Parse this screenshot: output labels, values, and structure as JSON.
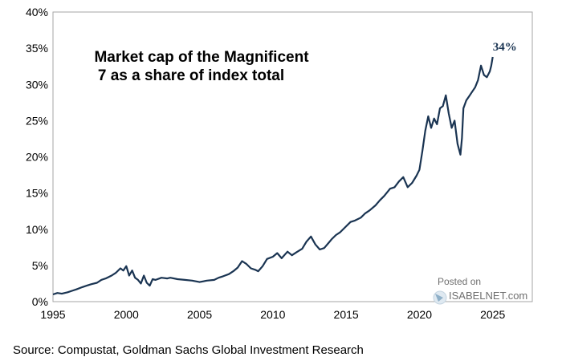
{
  "chart_data": {
    "type": "line",
    "title_lines": [
      "Market cap of the Magnificent",
      "7 as a share of index total"
    ],
    "xlabel": "",
    "ylabel": "",
    "xlim": [
      1995,
      2027.7
    ],
    "ylim": [
      0,
      40
    ],
    "x_ticks": [
      1995,
      2000,
      2005,
      2010,
      2015,
      2020,
      2025
    ],
    "x_tick_labels": [
      "1995",
      "2000",
      "2005",
      "2010",
      "2015",
      "2020",
      "2025"
    ],
    "y_ticks": [
      0,
      5,
      10,
      15,
      20,
      25,
      30,
      35,
      40
    ],
    "y_tick_labels": [
      "0%",
      "5%",
      "10%",
      "15%",
      "20%",
      "25%",
      "30%",
      "35%",
      "40%"
    ],
    "grid": false,
    "line_color": "#1a3452",
    "end_label": "34%",
    "series": [
      {
        "x": [
          1995.0,
          1995.3,
          1995.6,
          1996.0,
          1996.3,
          1996.6,
          1997.0,
          1997.3,
          1997.6,
          1998.0,
          1998.3,
          1998.6,
          1999.0,
          1999.3,
          1999.6,
          1999.8,
          2000.0,
          2000.2,
          2000.4,
          2000.6,
          2000.8,
          2001.0,
          2001.2,
          2001.4,
          2001.6,
          2001.8,
          2002.0,
          2002.4,
          2002.8,
          2003.0,
          2003.5,
          2004.0,
          2004.5,
          2005.0,
          2005.5,
          2006.0,
          2006.3,
          2006.6,
          2007.0,
          2007.3,
          2007.6,
          2007.9,
          2008.2,
          2008.5,
          2008.8,
          2009.0,
          2009.3,
          2009.6,
          2010.0,
          2010.3,
          2010.6,
          2011.0,
          2011.3,
          2011.6,
          2012.0,
          2012.3,
          2012.6,
          2012.9,
          2013.2,
          2013.5,
          2013.8,
          2014.0,
          2014.3,
          2014.6,
          2015.0,
          2015.3,
          2015.6,
          2016.0,
          2016.3,
          2016.6,
          2017.0,
          2017.3,
          2017.6,
          2018.0,
          2018.3,
          2018.6,
          2018.9,
          2019.2,
          2019.5,
          2019.8,
          2020.0,
          2020.2,
          2020.4,
          2020.6,
          2020.8,
          2021.0,
          2021.2,
          2021.4,
          2021.6,
          2021.8,
          2022.0,
          2022.2,
          2022.4,
          2022.6,
          2022.8,
          2022.9,
          2023.0,
          2023.2,
          2023.4,
          2023.6,
          2023.8,
          2024.0,
          2024.2,
          2024.4,
          2024.6,
          2024.8,
          2024.9,
          2025.0
        ],
        "y": [
          1.0,
          1.2,
          1.1,
          1.3,
          1.5,
          1.7,
          2.0,
          2.2,
          2.4,
          2.6,
          3.0,
          3.2,
          3.6,
          4.0,
          4.6,
          4.3,
          4.9,
          3.6,
          4.3,
          3.3,
          3.0,
          2.5,
          3.6,
          2.6,
          2.2,
          3.1,
          3.0,
          3.3,
          3.2,
          3.3,
          3.1,
          3.0,
          2.9,
          2.7,
          2.9,
          3.0,
          3.3,
          3.5,
          3.8,
          4.2,
          4.7,
          5.6,
          5.2,
          4.6,
          4.4,
          4.2,
          4.9,
          5.9,
          6.2,
          6.7,
          6.0,
          6.9,
          6.4,
          6.8,
          7.3,
          8.3,
          9.0,
          7.9,
          7.2,
          7.4,
          8.1,
          8.6,
          9.2,
          9.6,
          10.4,
          11.0,
          11.2,
          11.6,
          12.2,
          12.6,
          13.3,
          14.0,
          14.6,
          15.6,
          15.8,
          16.6,
          17.2,
          15.8,
          16.4,
          17.4,
          18.2,
          20.8,
          23.6,
          25.6,
          24.0,
          25.3,
          24.5,
          26.7,
          27.0,
          28.5,
          26.0,
          24.0,
          25.0,
          21.8,
          20.3,
          22.6,
          26.7,
          27.8,
          28.4,
          29.0,
          29.6,
          30.6,
          32.6,
          31.3,
          31.0,
          31.8,
          32.6,
          33.8
        ]
      }
    ]
  },
  "watermark": {
    "posted_on": "Posted on",
    "site": "ISABELNET.com"
  },
  "source": "Source: Compustat, Goldman Sachs Global Investment Research"
}
